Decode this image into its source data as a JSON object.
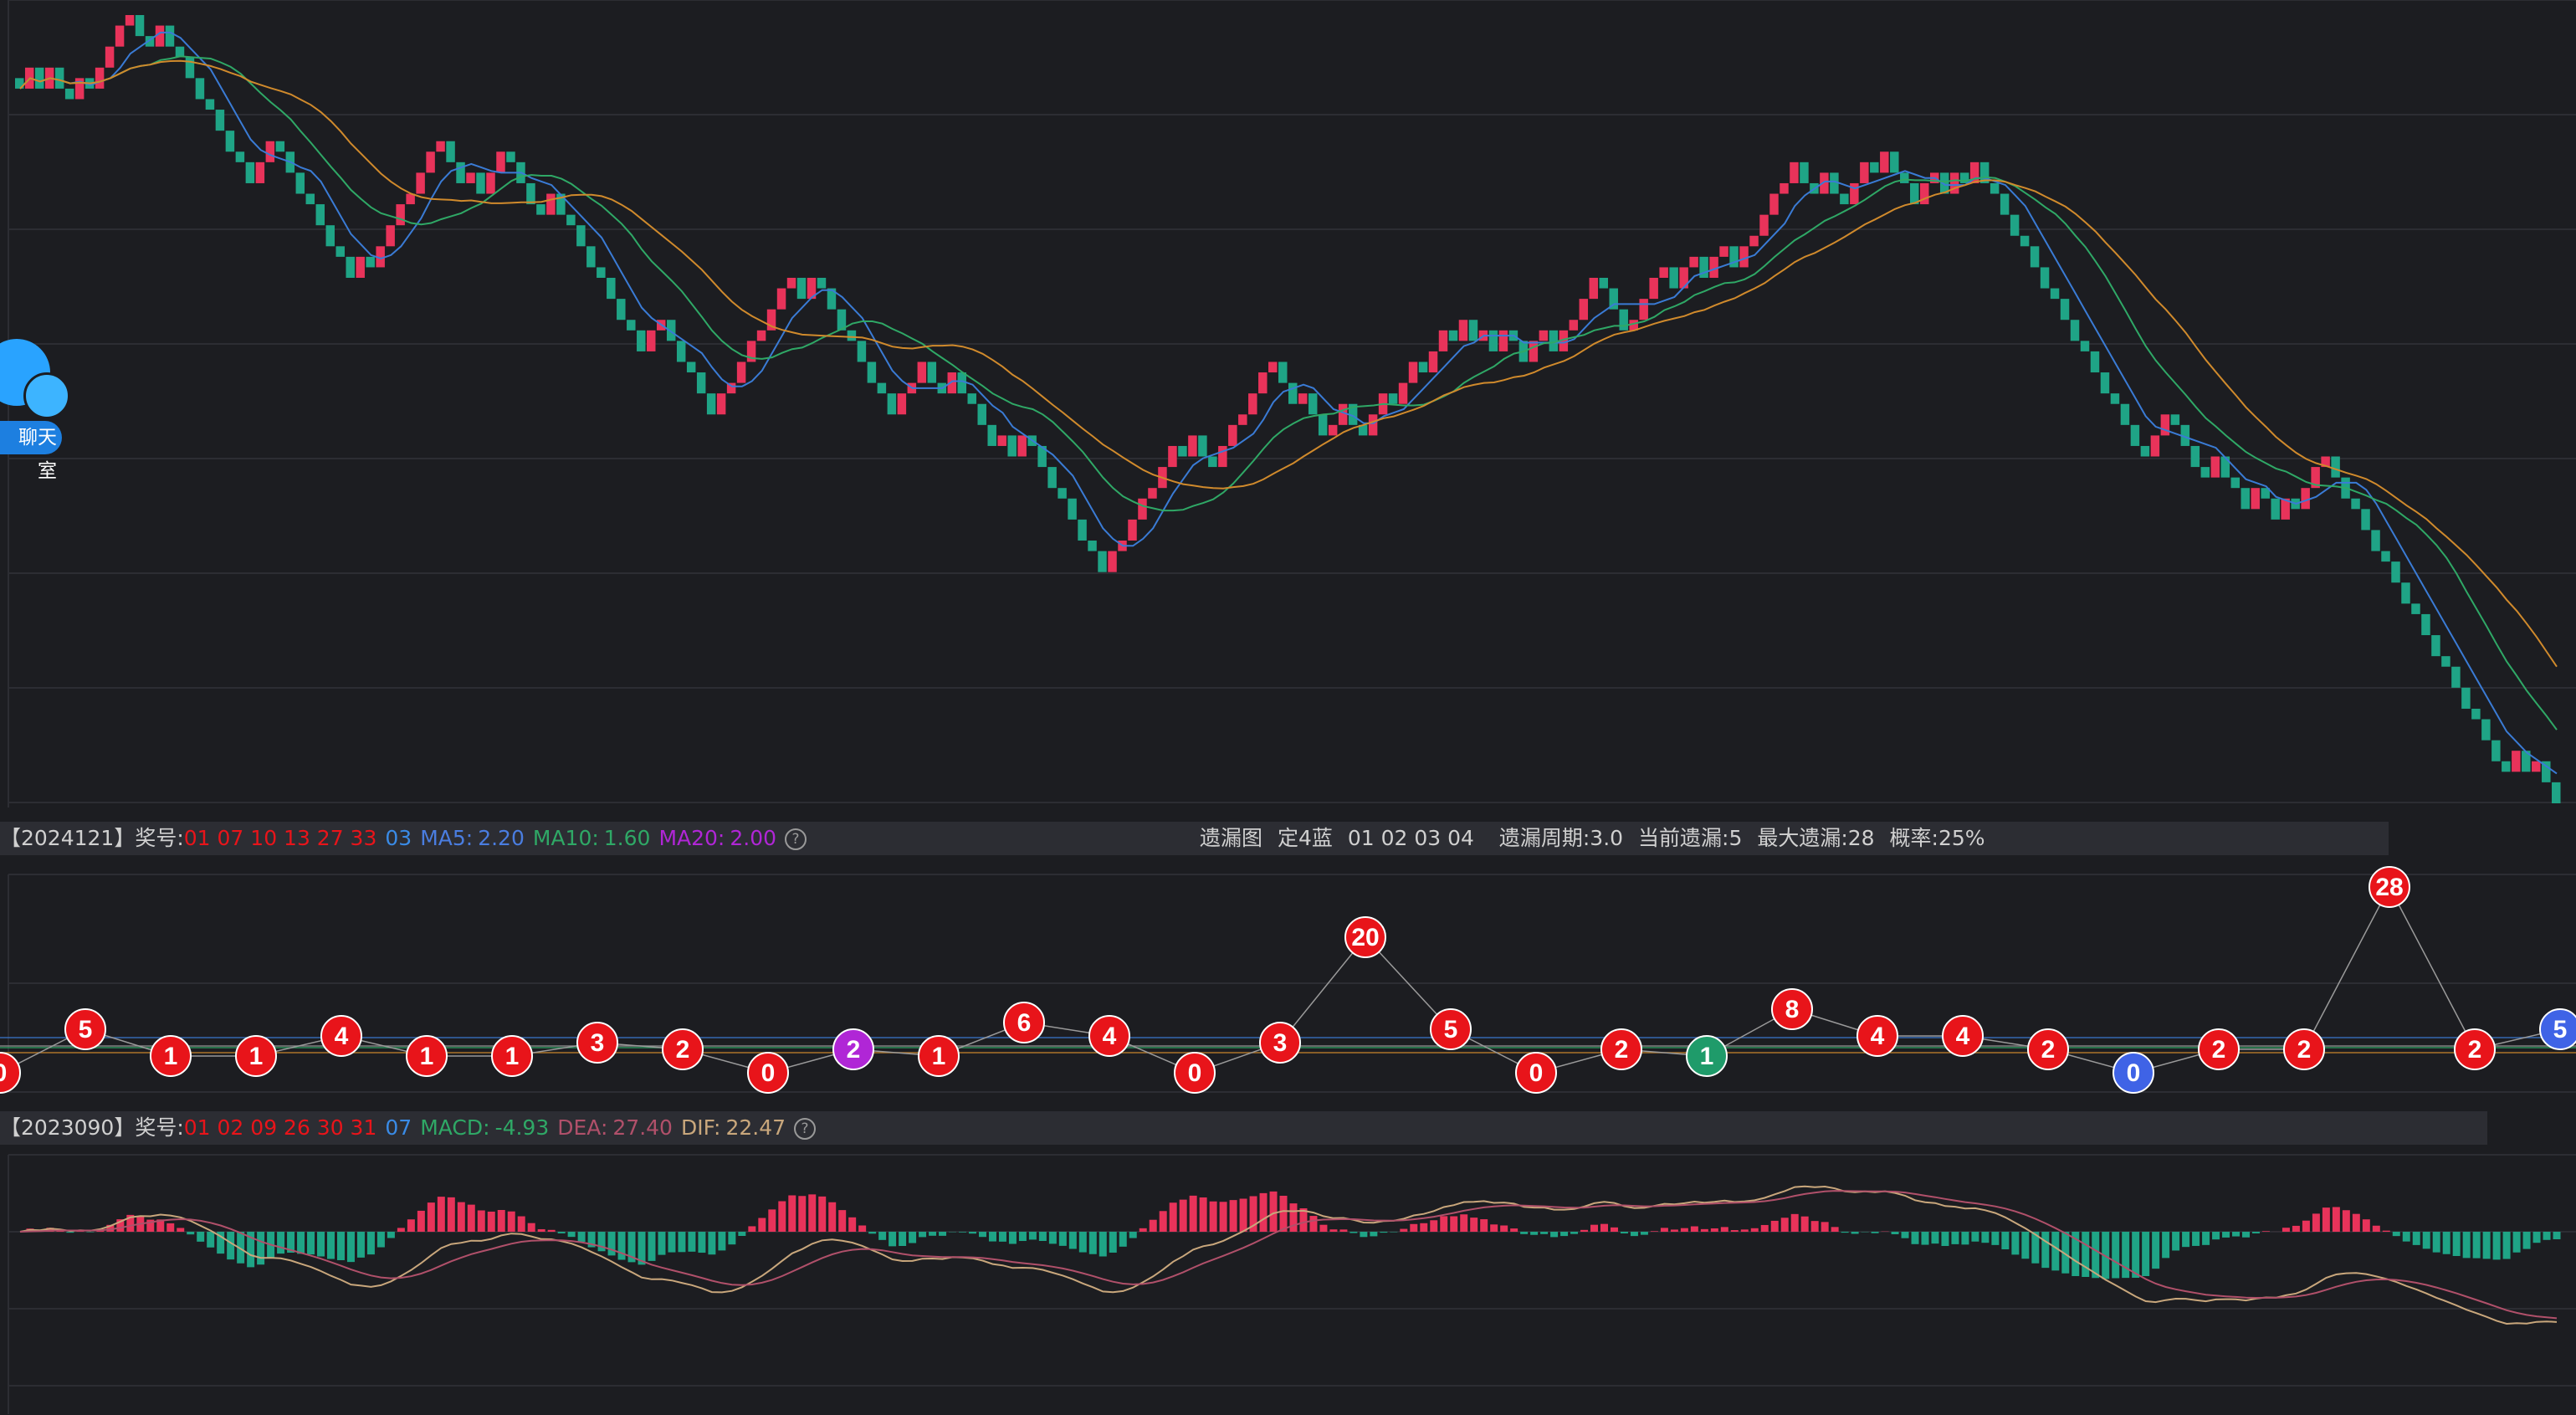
{
  "chart_data": [
    {
      "type": "candlestick",
      "title": "",
      "description_free": true,
      "candles": [
        {
          "d": "down",
          "o": 1
        },
        {
          "d": "up",
          "o": 2
        },
        {
          "d": "down",
          "o": 2
        },
        {
          "d": "up",
          "o": 2
        },
        {
          "d": "down",
          "o": 2
        },
        {
          "d": "down",
          "o": 1
        },
        {
          "d": "up",
          "o": 2
        },
        {
          "d": "down",
          "o": 1
        },
        {
          "d": "up",
          "o": 2
        },
        {
          "d": "up",
          "o": 2
        },
        {
          "d": "up",
          "o": 2
        },
        {
          "d": "up",
          "o": 1
        },
        {
          "d": "down",
          "o": 2
        },
        {
          "d": "down",
          "o": 1
        },
        {
          "d": "up",
          "o": 2
        },
        {
          "d": "down",
          "o": 2
        },
        {
          "d": "down",
          "o": 1
        },
        {
          "d": "down",
          "o": 2
        },
        {
          "d": "down",
          "o": 2
        },
        {
          "d": "down",
          "o": 1
        },
        {
          "d": "down",
          "o": 2
        },
        {
          "d": "down",
          "o": 2
        },
        {
          "d": "down",
          "o": 1
        },
        {
          "d": "down",
          "o": 2
        },
        {
          "d": "up",
          "o": 2
        },
        {
          "d": "up",
          "o": 2
        },
        {
          "d": "down",
          "o": 1
        },
        {
          "d": "down",
          "o": 2
        },
        {
          "d": "down",
          "o": 2
        },
        {
          "d": "down",
          "o": 1
        },
        {
          "d": "down",
          "o": 2
        },
        {
          "d": "down",
          "o": 2
        },
        {
          "d": "down",
          "o": 1
        },
        {
          "d": "down",
          "o": 2
        },
        {
          "d": "up",
          "o": 2
        },
        {
          "d": "down",
          "o": 1
        },
        {
          "d": "up",
          "o": 2
        },
        {
          "d": "up",
          "o": 2
        },
        {
          "d": "up",
          "o": 2
        },
        {
          "d": "up",
          "o": 1
        },
        {
          "d": "up",
          "o": 2
        },
        {
          "d": "up",
          "o": 2
        },
        {
          "d": "up",
          "o": 1
        },
        {
          "d": "down",
          "o": 2
        },
        {
          "d": "down",
          "o": 2
        },
        {
          "d": "up",
          "o": 1
        },
        {
          "d": "down",
          "o": 2
        },
        {
          "d": "up",
          "o": 2
        },
        {
          "d": "up",
          "o": 2
        },
        {
          "d": "down",
          "o": 1
        },
        {
          "d": "down",
          "o": 2
        },
        {
          "d": "down",
          "o": 2
        },
        {
          "d": "down",
          "o": 1
        },
        {
          "d": "up",
          "o": 2
        },
        {
          "d": "down",
          "o": 2
        },
        {
          "d": "down",
          "o": 1
        },
        {
          "d": "down",
          "o": 2
        },
        {
          "d": "down",
          "o": 2
        },
        {
          "d": "down",
          "o": 1
        },
        {
          "d": "down",
          "o": 2
        },
        {
          "d": "down",
          "o": 2
        },
        {
          "d": "down",
          "o": 1
        },
        {
          "d": "down",
          "o": 2
        },
        {
          "d": "up",
          "o": 2
        },
        {
          "d": "up",
          "o": 1
        },
        {
          "d": "down",
          "o": 2
        },
        {
          "d": "down",
          "o": 2
        },
        {
          "d": "down",
          "o": 1
        },
        {
          "d": "down",
          "o": 2
        },
        {
          "d": "down",
          "o": 2
        },
        {
          "d": "up",
          "o": 2
        },
        {
          "d": "up",
          "o": 1
        },
        {
          "d": "up",
          "o": 2
        },
        {
          "d": "up",
          "o": 2
        },
        {
          "d": "up",
          "o": 1
        },
        {
          "d": "up",
          "o": 2
        },
        {
          "d": "up",
          "o": 2
        },
        {
          "d": "up",
          "o": 1
        },
        {
          "d": "down",
          "o": 2
        },
        {
          "d": "up",
          "o": 2
        },
        {
          "d": "down",
          "o": 1
        },
        {
          "d": "down",
          "o": 2
        },
        {
          "d": "down",
          "o": 2
        },
        {
          "d": "down",
          "o": 1
        },
        {
          "d": "down",
          "o": 2
        },
        {
          "d": "down",
          "o": 2
        },
        {
          "d": "down",
          "o": 1
        },
        {
          "d": "down",
          "o": 2
        },
        {
          "d": "up",
          "o": 2
        },
        {
          "d": "up",
          "o": 1
        },
        {
          "d": "up",
          "o": 2
        },
        {
          "d": "down",
          "o": 2
        },
        {
          "d": "down",
          "o": 1
        },
        {
          "d": "up",
          "o": 2
        },
        {
          "d": "down",
          "o": 2
        },
        {
          "d": "down",
          "o": 1
        },
        {
          "d": "down",
          "o": 2
        },
        {
          "d": "down",
          "o": 2
        },
        {
          "d": "up",
          "o": 1
        },
        {
          "d": "down",
          "o": 2
        },
        {
          "d": "up",
          "o": 2
        },
        {
          "d": "down",
          "o": 1
        },
        {
          "d": "down",
          "o": 2
        },
        {
          "d": "down",
          "o": 2
        },
        {
          "d": "down",
          "o": 1
        },
        {
          "d": "down",
          "o": 2
        },
        {
          "d": "down",
          "o": 2
        },
        {
          "d": "down",
          "o": 1
        },
        {
          "d": "down",
          "o": 2
        },
        {
          "d": "up",
          "o": 2
        },
        {
          "d": "up",
          "o": 1
        },
        {
          "d": "up",
          "o": 2
        },
        {
          "d": "up",
          "o": 2
        },
        {
          "d": "up",
          "o": 1
        },
        {
          "d": "up",
          "o": 2
        },
        {
          "d": "up",
          "o": 2
        },
        {
          "d": "down",
          "o": 1
        },
        {
          "d": "up",
          "o": 2
        },
        {
          "d": "down",
          "o": 2
        },
        {
          "d": "down",
          "o": 1
        },
        {
          "d": "up",
          "o": 2
        },
        {
          "d": "up",
          "o": 2
        },
        {
          "d": "up",
          "o": 1
        },
        {
          "d": "up",
          "o": 2
        },
        {
          "d": "up",
          "o": 2
        },
        {
          "d": "up",
          "o": 1
        },
        {
          "d": "down",
          "o": 2
        },
        {
          "d": "down",
          "o": 2
        },
        {
          "d": "up",
          "o": 1
        },
        {
          "d": "down",
          "o": 2
        },
        {
          "d": "down",
          "o": 2
        },
        {
          "d": "up",
          "o": 1
        },
        {
          "d": "up",
          "o": 2
        },
        {
          "d": "down",
          "o": 2
        },
        {
          "d": "down",
          "o": 1
        },
        {
          "d": "up",
          "o": 2
        },
        {
          "d": "up",
          "o": 2
        },
        {
          "d": "down",
          "o": 1
        },
        {
          "d": "up",
          "o": 2
        },
        {
          "d": "up",
          "o": 2
        },
        {
          "d": "down",
          "o": 1
        },
        {
          "d": "up",
          "o": 2
        },
        {
          "d": "up",
          "o": 2
        },
        {
          "d": "down",
          "o": 1
        },
        {
          "d": "up",
          "o": 2
        },
        {
          "d": "down",
          "o": 2
        },
        {
          "d": "up",
          "o": 1
        },
        {
          "d": "down",
          "o": 2
        },
        {
          "d": "up",
          "o": 2
        },
        {
          "d": "down",
          "o": 1
        },
        {
          "d": "down",
          "o": 2
        },
        {
          "d": "up",
          "o": 2
        },
        {
          "d": "up",
          "o": 1
        },
        {
          "d": "down",
          "o": 2
        },
        {
          "d": "up",
          "o": 2
        },
        {
          "d": "up",
          "o": 1
        },
        {
          "d": "up",
          "o": 2
        },
        {
          "d": "up",
          "o": 2
        },
        {
          "d": "down",
          "o": 1
        },
        {
          "d": "down",
          "o": 2
        },
        {
          "d": "down",
          "o": 2
        },
        {
          "d": "up",
          "o": 1
        },
        {
          "d": "up",
          "o": 2
        },
        {
          "d": "up",
          "o": 2
        },
        {
          "d": "up",
          "o": 1
        },
        {
          "d": "down",
          "o": 2
        },
        {
          "d": "up",
          "o": 2
        },
        {
          "d": "up",
          "o": 1
        },
        {
          "d": "down",
          "o": 2
        },
        {
          "d": "up",
          "o": 2
        },
        {
          "d": "up",
          "o": 1
        },
        {
          "d": "down",
          "o": 2
        },
        {
          "d": "up",
          "o": 2
        },
        {
          "d": "up",
          "o": 1
        },
        {
          "d": "up",
          "o": 2
        },
        {
          "d": "up",
          "o": 2
        },
        {
          "d": "up",
          "o": 1
        },
        {
          "d": "up",
          "o": 2
        },
        {
          "d": "down",
          "o": 2
        },
        {
          "d": "down",
          "o": 1
        },
        {
          "d": "up",
          "o": 2
        },
        {
          "d": "down",
          "o": 2
        },
        {
          "d": "down",
          "o": 1
        },
        {
          "d": "up",
          "o": 2
        },
        {
          "d": "up",
          "o": 2
        },
        {
          "d": "down",
          "o": 1
        },
        {
          "d": "up",
          "o": 2
        },
        {
          "d": "down",
          "o": 2
        },
        {
          "d": "down",
          "o": 1
        },
        {
          "d": "down",
          "o": 2
        },
        {
          "d": "up",
          "o": 2
        },
        {
          "d": "up",
          "o": 1
        },
        {
          "d": "down",
          "o": 2
        },
        {
          "d": "up",
          "o": 2
        },
        {
          "d": "down",
          "o": 1
        },
        {
          "d": "up",
          "o": 2
        },
        {
          "d": "down",
          "o": 2
        },
        {
          "d": "down",
          "o": 1
        },
        {
          "d": "down",
          "o": 2
        },
        {
          "d": "down",
          "o": 2
        },
        {
          "d": "down",
          "o": 1
        },
        {
          "d": "down",
          "o": 2
        },
        {
          "d": "down",
          "o": 2
        },
        {
          "d": "down",
          "o": 1
        },
        {
          "d": "down",
          "o": 2
        },
        {
          "d": "down",
          "o": 2
        },
        {
          "d": "down",
          "o": 1
        },
        {
          "d": "down",
          "o": 2
        },
        {
          "d": "down",
          "o": 2
        },
        {
          "d": "down",
          "o": 1
        },
        {
          "d": "down",
          "o": 2
        },
        {
          "d": "down",
          "o": 2
        },
        {
          "d": "down",
          "o": 1
        },
        {
          "d": "up",
          "o": 2
        },
        {
          "d": "up",
          "o": 2
        },
        {
          "d": "down",
          "o": 1
        },
        {
          "d": "down",
          "o": 2
        },
        {
          "d": "down",
          "o": 2
        },
        {
          "d": "down",
          "o": 1
        },
        {
          "d": "up",
          "o": 2
        },
        {
          "d": "down",
          "o": 2
        },
        {
          "d": "down",
          "o": 1
        },
        {
          "d": "down",
          "o": 2
        },
        {
          "d": "up",
          "o": 2
        },
        {
          "d": "down",
          "o": 1
        },
        {
          "d": "down",
          "o": 2
        },
        {
          "d": "up",
          "o": 2
        },
        {
          "d": "down",
          "o": 1
        },
        {
          "d": "up",
          "o": 2
        },
        {
          "d": "up",
          "o": 2
        },
        {
          "d": "up",
          "o": 1
        },
        {
          "d": "down",
          "o": 2
        },
        {
          "d": "down",
          "o": 2
        },
        {
          "d": "down",
          "o": 1
        },
        {
          "d": "down",
          "o": 2
        },
        {
          "d": "down",
          "o": 2
        },
        {
          "d": "down",
          "o": 1
        },
        {
          "d": "down",
          "o": 2
        },
        {
          "d": "down",
          "o": 2
        },
        {
          "d": "down",
          "o": 1
        },
        {
          "d": "down",
          "o": 2
        },
        {
          "d": "down",
          "o": 2
        },
        {
          "d": "down",
          "o": 1
        },
        {
          "d": "down",
          "o": 2
        },
        {
          "d": "down",
          "o": 2
        },
        {
          "d": "down",
          "o": 1
        },
        {
          "d": "down",
          "o": 2
        },
        {
          "d": "down",
          "o": 2
        },
        {
          "d": "down",
          "o": 1
        },
        {
          "d": "up",
          "o": 2
        },
        {
          "d": "down",
          "o": 2
        },
        {
          "d": "up",
          "o": 1
        },
        {
          "d": "down",
          "o": 2
        },
        {
          "d": "down",
          "o": 2
        }
      ],
      "legend": "ma-lines"
    },
    {
      "type": "line",
      "title": "遗漏图",
      "points": [
        {
          "v": 0,
          "c": "red"
        },
        {
          "v": 5,
          "c": "red"
        },
        {
          "v": 1,
          "c": "red"
        },
        {
          "v": 1,
          "c": "red"
        },
        {
          "v": 4,
          "c": "red"
        },
        {
          "v": 1,
          "c": "red"
        },
        {
          "v": 1,
          "c": "red"
        },
        {
          "v": 3,
          "c": "red"
        },
        {
          "v": 2,
          "c": "red"
        },
        {
          "v": 0,
          "c": "red"
        },
        {
          "v": 2,
          "c": "purple"
        },
        {
          "v": 1,
          "c": "red"
        },
        {
          "v": 6,
          "c": "red"
        },
        {
          "v": 4,
          "c": "red"
        },
        {
          "v": 0,
          "c": "red"
        },
        {
          "v": 3,
          "c": "red"
        },
        {
          "v": 20,
          "c": "red"
        },
        {
          "v": 5,
          "c": "red"
        },
        {
          "v": 0,
          "c": "red"
        },
        {
          "v": 2,
          "c": "red"
        },
        {
          "v": 1,
          "c": "green"
        },
        {
          "v": 8,
          "c": "red"
        },
        {
          "v": 4,
          "c": "red"
        },
        {
          "v": 4,
          "c": "red"
        },
        {
          "v": 2,
          "c": "red"
        },
        {
          "v": 0,
          "c": "blue"
        },
        {
          "v": 2,
          "c": "red"
        },
        {
          "v": 2,
          "c": "red"
        },
        {
          "v": 28,
          "c": "red"
        },
        {
          "v": 2,
          "c": "red"
        },
        {
          "v": 5,
          "c": "blue"
        }
      ]
    },
    {
      "type": "bar",
      "title": "MACD",
      "series": [
        {
          "name": "MACD",
          "values": []
        },
        {
          "name": "DEA",
          "values": []
        },
        {
          "name": "DIF",
          "values": []
        }
      ]
    }
  ],
  "colors": {
    "up": "#e8335a",
    "down": "#1fa486",
    "ma5": "#3a7bd5",
    "ma10": "#2fa866",
    "ma20": "#d08a2c",
    "grid": "#2c2d33",
    "bg": "#1c1d21",
    "miss_red": "#e8141a",
    "miss_purple": "#b026d6",
    "miss_green": "#1f9b6a",
    "miss_blue": "#3f63e6"
  },
  "info1": {
    "period": "【2024121】奖号:",
    "numbers_red": "01 07 10 13 27 33",
    "number_blue": "03",
    "ma5_label": "MA5:",
    "ma5_val": "2.20",
    "ma10_label": "MA10:",
    "ma10_val": "1.60",
    "ma20_label": "MA20:",
    "ma20_val": "2.00",
    "help": "?",
    "miss_title": "遗漏图",
    "miss_target": "定4蓝",
    "miss_nums": "01 02 03 04",
    "miss_cycle": "遗漏周期:3.0",
    "miss_current": "当前遗漏:5",
    "miss_max": "最大遗漏:28",
    "miss_prob": "概率:25%"
  },
  "info2": {
    "period": "【2023090】奖号:",
    "numbers_red": "01 02 09 26 30 31",
    "number_blue": "07",
    "macd_label": "MACD:",
    "macd_val": "-4.93",
    "dea_label": "DEA:",
    "dea_val": "27.40",
    "dif_label": "DIF:",
    "dif_val": "22.47",
    "help": "?"
  },
  "chat": {
    "label": "聊天室"
  }
}
